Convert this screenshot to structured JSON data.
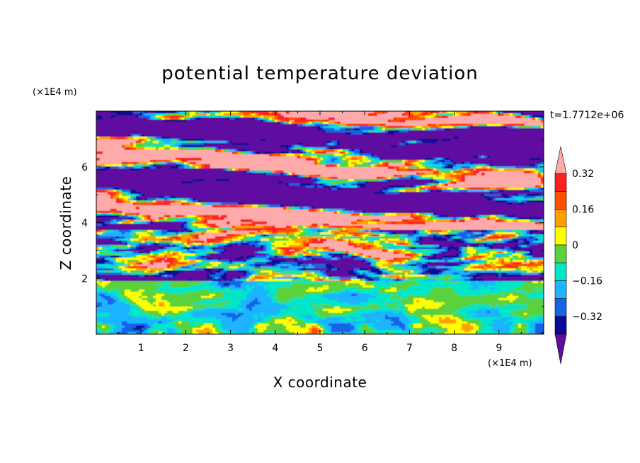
{
  "chart_data": {
    "type": "heatmap",
    "title": "potential temperature deviation",
    "xlabel": "X coordinate",
    "ylabel": "Z coordinate",
    "x_unit": "(×1E4 m)",
    "y_unit": "(×1E4 m)",
    "time_label": "t=1.7712e+06",
    "xlim": [
      0,
      10
    ],
    "ylim": [
      0,
      8
    ],
    "x_ticks": [
      "1",
      "2",
      "3",
      "4",
      "5",
      "6",
      "7",
      "8",
      "9"
    ],
    "y_ticks": [
      "2",
      "4",
      "6"
    ],
    "levels": [
      -0.4,
      -0.32,
      -0.24,
      -0.16,
      -0.08,
      0,
      0.08,
      0.16,
      0.24,
      0.32,
      0.4
    ],
    "level_colors": [
      "#5e0fa0",
      "#0a0a96",
      "#1464e6",
      "#1eb4ff",
      "#00e6c8",
      "#5ad23c",
      "#ffff00",
      "#ffa000",
      "#ff5000",
      "#ff2020",
      "#ffaaaa"
    ],
    "colorbar_labels": [
      "0.32",
      "0.16",
      "0",
      "−0.16",
      "−0.32"
    ],
    "colorbar_label_values": [
      0.32,
      0.16,
      0,
      -0.16,
      -0.32
    ],
    "extend": "both"
  }
}
